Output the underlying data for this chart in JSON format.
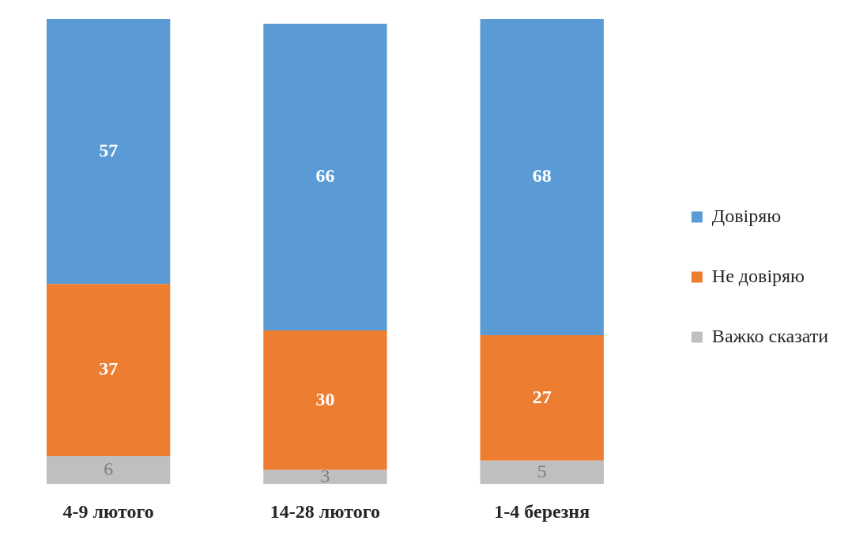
{
  "chart_data": {
    "type": "bar",
    "stacked": true,
    "categories": [
      "4-9 лютого",
      "14-28 лютого",
      "1-4 березня"
    ],
    "series": [
      {
        "name": "Важко сказати",
        "color": "#bfbfbf",
        "values": [
          6,
          3,
          5
        ]
      },
      {
        "name": "Не довіряю",
        "color": "#ed7d31",
        "values": [
          37,
          30,
          27
        ]
      },
      {
        "name": "Довіряю",
        "color": "#5b9bd5",
        "values": [
          57,
          66,
          68
        ]
      }
    ],
    "data_labels": true,
    "legend": "right",
    "grid": false
  }
}
